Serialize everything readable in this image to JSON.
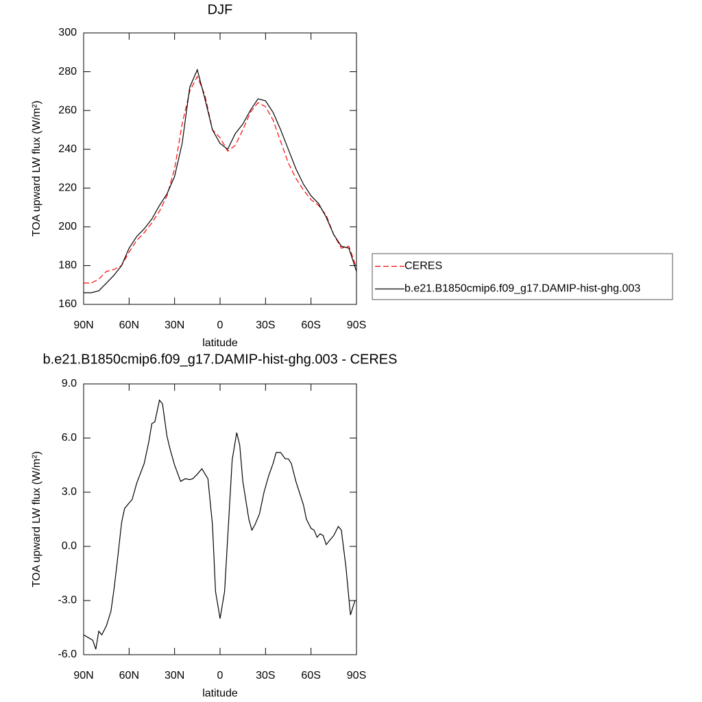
{
  "chart_data": [
    {
      "type": "line",
      "title": "DJF",
      "xlabel": "latitude",
      "ylabel": "TOA upward LW flux (W/m²)",
      "xlim": [
        90,
        -90
      ],
      "xticks": [
        {
          "value": 90,
          "label": "90N"
        },
        {
          "value": 60,
          "label": "60N"
        },
        {
          "value": 30,
          "label": "30N"
        },
        0,
        {
          "value": -30,
          "label": "30S"
        },
        {
          "value": -60,
          "label": "60S"
        },
        {
          "value": -90,
          "label": "90S"
        }
      ],
      "ylim": [
        160,
        300
      ],
      "yticks": [
        160,
        180,
        200,
        220,
        240,
        260,
        280,
        300
      ],
      "legend": "right",
      "x": [
        90,
        85,
        80,
        75,
        70,
        65,
        60,
        55,
        50,
        45,
        40,
        35,
        30,
        25,
        20,
        15,
        10,
        5,
        0,
        -5,
        -10,
        -15,
        -20,
        -25,
        -30,
        -35,
        -40,
        -45,
        -50,
        -55,
        -60,
        -65,
        -70,
        -75,
        -80,
        -85,
        -90
      ],
      "series": [
        {
          "name": "CERES",
          "color": "#ff0000",
          "linestyle": "dashed",
          "values": [
            171,
            171,
            173,
            177,
            178,
            180,
            187,
            193,
            197,
            202,
            208,
            216,
            230,
            253,
            270,
            277.5,
            268,
            250,
            246,
            239,
            242,
            250,
            259,
            264,
            262,
            255,
            244,
            233,
            225,
            219,
            214,
            211,
            206,
            196,
            189,
            190,
            179
          ]
        },
        {
          "name": "b.e21.B1850cmip6.f09_g17.DAMIP-hist-ghg.003",
          "color": "#000000",
          "linestyle": "solid",
          "values": [
            166,
            166,
            167,
            171,
            175,
            180,
            189,
            195,
            199,
            204,
            211,
            217,
            226,
            243,
            272,
            281,
            266,
            250,
            243,
            240,
            248,
            253,
            260,
            266,
            265,
            259,
            250,
            240,
            230,
            222,
            216,
            212,
            205,
            196,
            190,
            189,
            177
          ]
        }
      ]
    },
    {
      "type": "line",
      "title": "b.e21.B1850cmip6.f09_g17.DAMIP-hist-ghg.003 - CERES",
      "xlabel": "latitude",
      "ylabel": "TOA upward LW flux (W/m²)",
      "xlim": [
        90,
        -90
      ],
      "xticks": [
        {
          "value": 90,
          "label": "90N"
        },
        {
          "value": 60,
          "label": "60N"
        },
        {
          "value": 30,
          "label": "30N"
        },
        0,
        {
          "value": -30,
          "label": "30S"
        },
        {
          "value": -60,
          "label": "60S"
        },
        {
          "value": -90,
          "label": "90S"
        }
      ],
      "ylim": [
        -6,
        9
      ],
      "yticks": [
        {
          "value": -6,
          "label": "-6.0"
        },
        {
          "value": -3,
          "label": "-3.0"
        },
        {
          "value": 0,
          "label": "0.0"
        },
        {
          "value": 3,
          "label": "3.0"
        },
        {
          "value": 6,
          "label": "6.0"
        },
        {
          "value": 9,
          "label": "9.0"
        }
      ],
      "x": [
        90,
        86,
        84,
        82,
        80,
        78,
        75,
        72,
        70,
        68,
        65,
        63,
        60,
        58,
        55,
        50,
        47,
        45,
        43,
        40,
        38,
        35,
        33,
        30,
        26,
        23,
        20,
        18,
        15,
        12,
        8,
        5,
        3,
        0,
        -3,
        -8,
        -11,
        -13,
        -15,
        -19,
        -21,
        -23,
        -26,
        -29,
        -32,
        -35,
        -37,
        -40,
        -43,
        -45,
        -47,
        -50,
        -55,
        -57,
        -60,
        -62,
        -64,
        -66,
        -68,
        -70,
        -72,
        -75,
        -78,
        -80,
        -83,
        -86,
        -89
      ],
      "series": [
        {
          "color": "#000000",
          "linestyle": "solid",
          "values": [
            -4.9,
            -5.1,
            -5.2,
            -5.7,
            -4.7,
            -4.9,
            -4.4,
            -3.6,
            -2.4,
            -1.0,
            1.3,
            2.1,
            2.4,
            2.6,
            3.5,
            4.6,
            5.8,
            6.8,
            6.9,
            8.1,
            7.9,
            6.1,
            5.4,
            4.5,
            3.6,
            3.75,
            3.7,
            3.75,
            4.0,
            4.3,
            3.75,
            1.2,
            -2.5,
            -4.0,
            -2.5,
            4.8,
            6.3,
            5.6,
            3.6,
            1.5,
            0.9,
            1.2,
            1.8,
            3.0,
            3.9,
            4.6,
            5.2,
            5.2,
            4.85,
            4.85,
            4.6,
            3.6,
            2.3,
            1.5,
            1.0,
            0.9,
            0.5,
            0.7,
            0.6,
            0.1,
            0.3,
            0.6,
            1.1,
            0.9,
            -1.1,
            -3.8,
            -3.0
          ]
        }
      ]
    }
  ]
}
